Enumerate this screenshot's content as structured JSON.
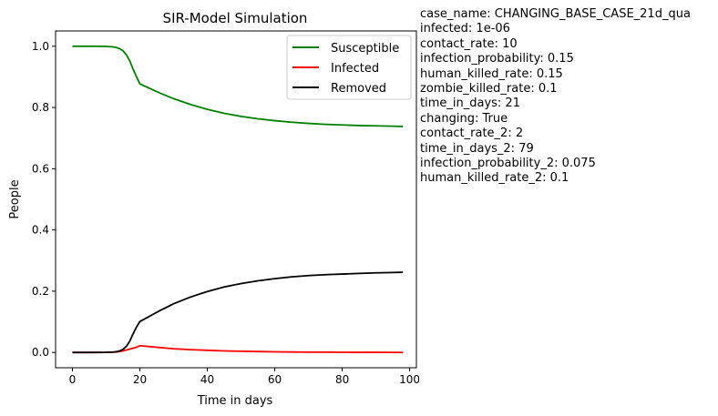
{
  "chart_data": {
    "type": "line",
    "title": "SIR-Model Simulation",
    "xlabel": "Time in days",
    "ylabel": "People",
    "xlim": [
      -5,
      102
    ],
    "ylim": [
      -0.05,
      1.05
    ],
    "xticks": [
      0,
      20,
      40,
      60,
      80,
      100
    ],
    "yticks": [
      0.0,
      0.2,
      0.4,
      0.6,
      0.8,
      1.0
    ],
    "xtick_labels": [
      "0",
      "20",
      "40",
      "60",
      "80",
      "100"
    ],
    "ytick_labels": [
      "0.0",
      "0.2",
      "0.4",
      "0.6",
      "0.8",
      "1.0"
    ],
    "grid": false,
    "legend_position": "top-right",
    "x": [
      0,
      2,
      4,
      6,
      8,
      10,
      12,
      13,
      14,
      15,
      16,
      17,
      18,
      19,
      20,
      21,
      22,
      24,
      26,
      28,
      30,
      35,
      40,
      45,
      50,
      55,
      60,
      65,
      70,
      75,
      80,
      85,
      90,
      95,
      98
    ],
    "series": [
      {
        "name": "Susceptible",
        "color": "#008000",
        "values": [
          1.0,
          1.0,
          1.0,
          1.0,
          0.9999,
          0.9995,
          0.998,
          0.996,
          0.992,
          0.985,
          0.972,
          0.952,
          0.925,
          0.9,
          0.877,
          0.872,
          0.867,
          0.857,
          0.847,
          0.838,
          0.829,
          0.81,
          0.794,
          0.781,
          0.771,
          0.763,
          0.757,
          0.752,
          0.748,
          0.745,
          0.743,
          0.741,
          0.74,
          0.739,
          0.738
        ]
      },
      {
        "name": "Infected",
        "color": "#ff0000",
        "values": [
          0.0,
          0.0,
          0.0,
          0.0,
          0.0,
          0.0002,
          0.0008,
          0.0015,
          0.003,
          0.005,
          0.008,
          0.011,
          0.014,
          0.017,
          0.022,
          0.021,
          0.02,
          0.018,
          0.016,
          0.014,
          0.012,
          0.009,
          0.007,
          0.005,
          0.004,
          0.003,
          0.002,
          0.0015,
          0.001,
          0.0008,
          0.0006,
          0.0004,
          0.0003,
          0.0002,
          0.0002
        ]
      },
      {
        "name": "Removed",
        "color": "#000000",
        "values": [
          0.0,
          0.0,
          0.0,
          0.0,
          0.0001,
          0.0003,
          0.0012,
          0.0025,
          0.005,
          0.01,
          0.02,
          0.037,
          0.061,
          0.083,
          0.101,
          0.107,
          0.113,
          0.125,
          0.137,
          0.148,
          0.159,
          0.181,
          0.199,
          0.214,
          0.225,
          0.234,
          0.241,
          0.247,
          0.251,
          0.254,
          0.256,
          0.258,
          0.26,
          0.261,
          0.262
        ]
      }
    ]
  },
  "parameters": [
    "case_name: CHANGING_BASE_CASE_21d_qua",
    "infected: 1e-06",
    "contact_rate: 10",
    "infection_probability: 0.15",
    "human_killed_rate: 0.15",
    "zombie_killed_rate: 0.1",
    "time_in_days: 21",
    "changing: True",
    "contact_rate_2: 2",
    "time_in_days_2: 79",
    "infection_probability_2: 0.075",
    "human_killed_rate_2: 0.1"
  ]
}
